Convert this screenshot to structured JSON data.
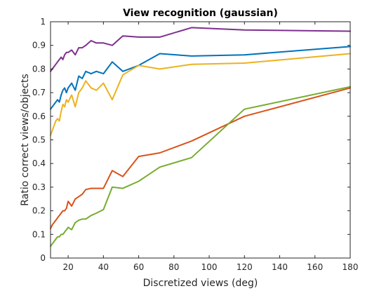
{
  "chart_data": {
    "type": "line",
    "title": "View recognition (gaussian)",
    "xlabel": "Discretized views (deg)",
    "ylabel": "Ratio correct views/objects",
    "xlim": [
      10,
      180
    ],
    "ylim": [
      0,
      1
    ],
    "xticks": [
      20,
      40,
      60,
      80,
      100,
      120,
      140,
      160,
      180
    ],
    "xtick_labels": [
      "20",
      "40",
      "60",
      "80",
      "100",
      "120",
      "140",
      "160",
      "180"
    ],
    "yticks": [
      0,
      0.1,
      0.2,
      0.3,
      0.4,
      0.5,
      0.6,
      0.7,
      0.8,
      0.9,
      1
    ],
    "ytick_labels": [
      "0",
      "0.1",
      "0.2",
      "0.3",
      "0.4",
      "0.5",
      "0.6",
      "0.7",
      "0.8",
      "0.9",
      "1"
    ],
    "grid": false,
    "series": [
      {
        "color": "#7E2F8E",
        "x": [
          10,
          11,
          12,
          13,
          14,
          15,
          16,
          17,
          18,
          19,
          20,
          22,
          24,
          26,
          28,
          30,
          33,
          36,
          40,
          45,
          51,
          60,
          72,
          90,
          120,
          180
        ],
        "y": [
          0.79,
          0.8,
          0.81,
          0.82,
          0.83,
          0.84,
          0.85,
          0.84,
          0.86,
          0.87,
          0.87,
          0.88,
          0.86,
          0.89,
          0.89,
          0.9,
          0.92,
          0.91,
          0.91,
          0.9,
          0.94,
          0.935,
          0.935,
          0.975,
          0.965,
          0.96
        ]
      },
      {
        "color": "#0072BD",
        "x": [
          10,
          11,
          12,
          13,
          14,
          15,
          16,
          17,
          18,
          19,
          20,
          22,
          24,
          26,
          28,
          30,
          33,
          36,
          40,
          45,
          51,
          60,
          72,
          90,
          120,
          180
        ],
        "y": [
          0.63,
          0.64,
          0.65,
          0.66,
          0.67,
          0.66,
          0.69,
          0.71,
          0.72,
          0.7,
          0.72,
          0.74,
          0.71,
          0.77,
          0.76,
          0.79,
          0.78,
          0.79,
          0.78,
          0.83,
          0.79,
          0.815,
          0.865,
          0.855,
          0.86,
          0.895
        ]
      },
      {
        "color": "#EDB120",
        "x": [
          10,
          11,
          12,
          13,
          14,
          15,
          16,
          17,
          18,
          19,
          20,
          22,
          24,
          26,
          28,
          30,
          33,
          36,
          40,
          45,
          51,
          60,
          72,
          90,
          120,
          180
        ],
        "y": [
          0.52,
          0.54,
          0.56,
          0.58,
          0.59,
          0.58,
          0.62,
          0.65,
          0.64,
          0.67,
          0.66,
          0.69,
          0.64,
          0.7,
          0.72,
          0.75,
          0.72,
          0.71,
          0.74,
          0.67,
          0.775,
          0.815,
          0.8,
          0.82,
          0.825,
          0.865
        ]
      },
      {
        "color": "#D95319",
        "x": [
          10,
          11,
          12,
          13,
          14,
          15,
          16,
          17,
          18,
          19,
          20,
          22,
          24,
          26,
          28,
          30,
          33,
          36,
          40,
          45,
          51,
          60,
          72,
          90,
          120,
          180
        ],
        "y": [
          0.125,
          0.14,
          0.15,
          0.16,
          0.17,
          0.18,
          0.19,
          0.2,
          0.2,
          0.21,
          0.24,
          0.22,
          0.25,
          0.26,
          0.27,
          0.29,
          0.295,
          0.295,
          0.295,
          0.37,
          0.345,
          0.43,
          0.445,
          0.495,
          0.6,
          0.72
        ]
      },
      {
        "color": "#77AC30",
        "x": [
          10,
          11,
          12,
          13,
          14,
          15,
          16,
          17,
          18,
          19,
          20,
          22,
          24,
          26,
          28,
          30,
          33,
          36,
          40,
          45,
          51,
          60,
          72,
          90,
          120,
          180
        ],
        "y": [
          0.05,
          0.06,
          0.07,
          0.08,
          0.09,
          0.09,
          0.1,
          0.1,
          0.11,
          0.12,
          0.13,
          0.12,
          0.15,
          0.16,
          0.165,
          0.165,
          0.18,
          0.19,
          0.205,
          0.3,
          0.295,
          0.325,
          0.385,
          0.425,
          0.63,
          0.725
        ]
      }
    ]
  }
}
